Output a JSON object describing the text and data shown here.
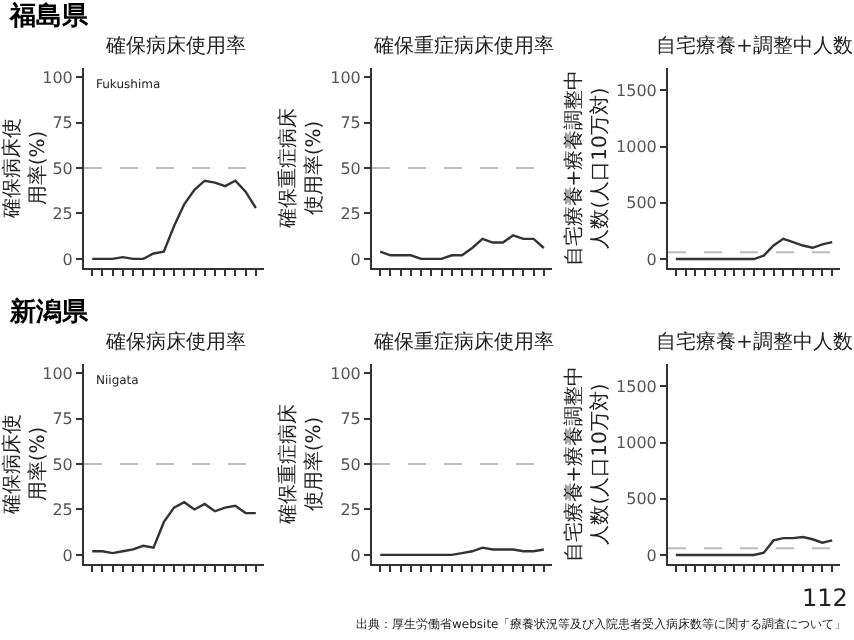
{
  "chart_data": [
    {
      "type": "line",
      "title": "確保病床使用率",
      "ylabel": "確保病床使用率(%)",
      "categories": [
        null,
        null,
        null,
        null,
        null,
        null,
        null,
        null,
        null,
        null,
        null,
        null,
        null,
        null,
        null,
        null,
        null
      ],
      "series": [
        {
          "color": "#333333",
          "values": [
            0,
            0,
            0,
            1,
            0,
            0,
            3,
            4,
            18,
            30,
            38,
            43,
            42,
            40,
            43,
            37,
            28
          ]
        }
      ],
      "ylim": [
        -5,
        105
      ],
      "yticks": [
        0,
        25,
        50,
        75,
        100
      ],
      "ref_lines": [
        {
          "axis": "y",
          "value": 50,
          "color": "#bbbbbb",
          "line_style": "dashed"
        }
      ],
      "tick_labels": "y",
      "annotations": [
        "福島県",
        "Fukushima"
      ]
    },
    {
      "type": "line",
      "title": "確保重症病床使用率",
      "ylabel": "確保重症病床使用率(%)",
      "categories": [
        null,
        null,
        null,
        null,
        null,
        null,
        null,
        null,
        null,
        null,
        null,
        null,
        null,
        null,
        null,
        null,
        null
      ],
      "series": [
        {
          "color": "#333333",
          "values": [
            4,
            2,
            2,
            2,
            0,
            0,
            0,
            2,
            2,
            6,
            11,
            9,
            9,
            13,
            11,
            11,
            6
          ]
        }
      ],
      "ylim": [
        -5,
        105
      ],
      "yticks": [
        0,
        25,
        50,
        75,
        100
      ],
      "ref_lines": [
        {
          "axis": "y",
          "value": 50,
          "color": "#bbbbbb",
          "line_style": "dashed"
        }
      ],
      "tick_labels": "y"
    },
    {
      "type": "line",
      "title": "自宅療養+調整中人数",
      "ylabel": "自宅療養+療養調整中人数(人口10万対)",
      "categories": [
        null,
        null,
        null,
        null,
        null,
        null,
        null,
        null,
        null,
        null,
        null,
        null,
        null,
        null,
        null,
        null,
        null
      ],
      "series": [
        {
          "color": "#333333",
          "values": [
            0,
            0,
            0,
            0,
            0,
            0,
            0,
            0,
            0,
            30,
            120,
            180,
            150,
            120,
            100,
            130,
            150
          ]
        }
      ],
      "ylim": [
        -80,
        1700
      ],
      "yticks": [
        0,
        500,
        1000,
        1500
      ],
      "ref_lines": [
        {
          "axis": "y",
          "value": 60,
          "color": "#bbbbbb",
          "line_style": "dashed"
        }
      ],
      "tick_labels": "y"
    },
    {
      "type": "line",
      "title": "確保病床使用率",
      "ylabel": "確保病床使用率(%)",
      "categories": [
        null,
        null,
        null,
        null,
        null,
        null,
        null,
        null,
        null,
        null,
        null,
        null,
        null,
        null,
        null,
        null,
        null
      ],
      "series": [
        {
          "color": "#333333",
          "values": [
            2,
            2,
            1,
            2,
            3,
            5,
            4,
            18,
            26,
            29,
            25,
            28,
            24,
            26,
            27,
            23,
            23
          ]
        }
      ],
      "ylim": [
        -5,
        105
      ],
      "yticks": [
        0,
        25,
        50,
        75,
        100
      ],
      "ref_lines": [
        {
          "axis": "y",
          "value": 50,
          "color": "#bbbbbb",
          "line_style": "dashed"
        }
      ],
      "tick_labels": "y",
      "annotations": [
        "新潟県",
        "Niigata"
      ]
    },
    {
      "type": "line",
      "title": "確保重症病床使用率",
      "ylabel": "確保重症病床使用率(%)",
      "categories": [
        null,
        null,
        null,
        null,
        null,
        null,
        null,
        null,
        null,
        null,
        null,
        null,
        null,
        null,
        null,
        null,
        null
      ],
      "series": [
        {
          "color": "#333333",
          "values": [
            0,
            0,
            0,
            0,
            0,
            0,
            0,
            0,
            1,
            2,
            4,
            3,
            3,
            3,
            2,
            2,
            3
          ]
        }
      ],
      "ylim": [
        -5,
        105
      ],
      "yticks": [
        0,
        25,
        50,
        75,
        100
      ],
      "ref_lines": [
        {
          "axis": "y",
          "value": 50,
          "color": "#bbbbbb",
          "line_style": "dashed"
        }
      ],
      "tick_labels": "y"
    },
    {
      "type": "line",
      "title": "自宅療養+調整中人数",
      "ylabel": "自宅療養+療養調整中人数(人口10万対)",
      "categories": [
        null,
        null,
        null,
        null,
        null,
        null,
        null,
        null,
        null,
        null,
        null,
        null,
        null,
        null,
        null,
        null,
        null
      ],
      "series": [
        {
          "color": "#333333",
          "values": [
            0,
            0,
            0,
            0,
            0,
            0,
            0,
            0,
            0,
            20,
            130,
            150,
            150,
            160,
            140,
            110,
            130
          ]
        }
      ],
      "ylim": [
        -80,
        1700
      ],
      "yticks": [
        0,
        500,
        1000,
        1500
      ],
      "ref_lines": [
        {
          "axis": "y",
          "value": 60,
          "color": "#bbbbbb",
          "line_style": "dashed"
        }
      ],
      "tick_labels": "y",
      "annotations": [
        "出典：厚生労働省website「療養状況等及び入院患者受入病床数等に関する調査について」",
        "112"
      ]
    }
  ]
}
